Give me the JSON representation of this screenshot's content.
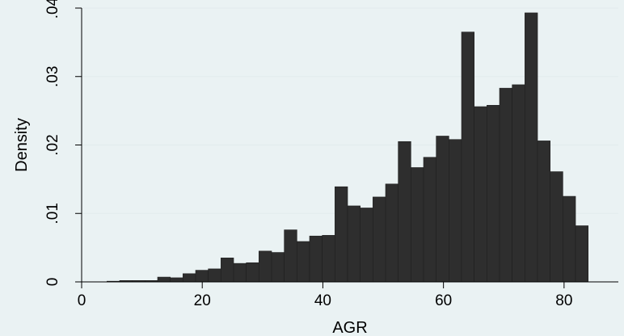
{
  "chart_data": {
    "type": "bar",
    "subtype": "histogram",
    "xlabel": "AGR",
    "ylabel": "Density",
    "xlim": [
      0,
      89
    ],
    "ylim": [
      0,
      0.04
    ],
    "xticks": [
      0,
      20,
      40,
      60,
      80
    ],
    "xtick_labels": [
      "0",
      "20",
      "40",
      "60",
      "80"
    ],
    "yticks": [
      0,
      0.01,
      0.02,
      0.03,
      0.04
    ],
    "ytick_labels": [
      "0",
      ".01",
      ".02",
      ".03",
      ".04"
    ],
    "grid": true,
    "bar_color": "#2e2e2e",
    "background": "#eaf2f3",
    "bin_width": 2.1,
    "bins": [
      {
        "x0": 4.2,
        "x1": 6.3,
        "value": 0.0001
      },
      {
        "x0": 6.3,
        "x1": 8.4,
        "value": 0.0002
      },
      {
        "x0": 8.4,
        "x1": 10.5,
        "value": 0.0002
      },
      {
        "x0": 10.5,
        "x1": 12.6,
        "value": 0.0002
      },
      {
        "x0": 12.6,
        "x1": 14.7,
        "value": 0.0007
      },
      {
        "x0": 14.7,
        "x1": 16.8,
        "value": 0.0006
      },
      {
        "x0": 16.8,
        "x1": 18.9,
        "value": 0.0012
      },
      {
        "x0": 18.9,
        "x1": 21.0,
        "value": 0.0017
      },
      {
        "x0": 21.0,
        "x1": 23.1,
        "value": 0.0019
      },
      {
        "x0": 23.1,
        "x1": 25.2,
        "value": 0.0035
      },
      {
        "x0": 25.2,
        "x1": 27.3,
        "value": 0.0027
      },
      {
        "x0": 27.3,
        "x1": 29.4,
        "value": 0.0028
      },
      {
        "x0": 29.4,
        "x1": 31.5,
        "value": 0.0045
      },
      {
        "x0": 31.5,
        "x1": 33.6,
        "value": 0.0043
      },
      {
        "x0": 33.6,
        "x1": 35.7,
        "value": 0.0076
      },
      {
        "x0": 35.7,
        "x1": 37.8,
        "value": 0.0059
      },
      {
        "x0": 37.8,
        "x1": 39.9,
        "value": 0.0067
      },
      {
        "x0": 39.9,
        "x1": 42.0,
        "value": 0.0068
      },
      {
        "x0": 42.0,
        "x1": 44.1,
        "value": 0.0139
      },
      {
        "x0": 44.1,
        "x1": 46.2,
        "value": 0.0111
      },
      {
        "x0": 46.2,
        "x1": 48.3,
        "value": 0.0108
      },
      {
        "x0": 48.3,
        "x1": 50.4,
        "value": 0.0124
      },
      {
        "x0": 50.4,
        "x1": 52.5,
        "value": 0.0143
      },
      {
        "x0": 52.5,
        "x1": 54.6,
        "value": 0.0205
      },
      {
        "x0": 54.6,
        "x1": 56.7,
        "value": 0.0167
      },
      {
        "x0": 56.7,
        "x1": 58.8,
        "value": 0.0182
      },
      {
        "x0": 58.8,
        "x1": 60.9,
        "value": 0.0213
      },
      {
        "x0": 60.9,
        "x1": 63.0,
        "value": 0.0208
      },
      {
        "x0": 63.0,
        "x1": 65.1,
        "value": 0.0365
      },
      {
        "x0": 65.1,
        "x1": 67.2,
        "value": 0.0256
      },
      {
        "x0": 67.2,
        "x1": 69.3,
        "value": 0.0258
      },
      {
        "x0": 69.3,
        "x1": 71.4,
        "value": 0.0283
      },
      {
        "x0": 71.4,
        "x1": 73.5,
        "value": 0.0288
      },
      {
        "x0": 73.5,
        "x1": 75.6,
        "value": 0.0393
      },
      {
        "x0": 75.6,
        "x1": 77.7,
        "value": 0.0206
      },
      {
        "x0": 77.7,
        "x1": 79.8,
        "value": 0.0161
      },
      {
        "x0": 79.8,
        "x1": 81.9,
        "value": 0.0125
      },
      {
        "x0": 81.9,
        "x1": 84.0,
        "value": 0.0082
      }
    ]
  }
}
